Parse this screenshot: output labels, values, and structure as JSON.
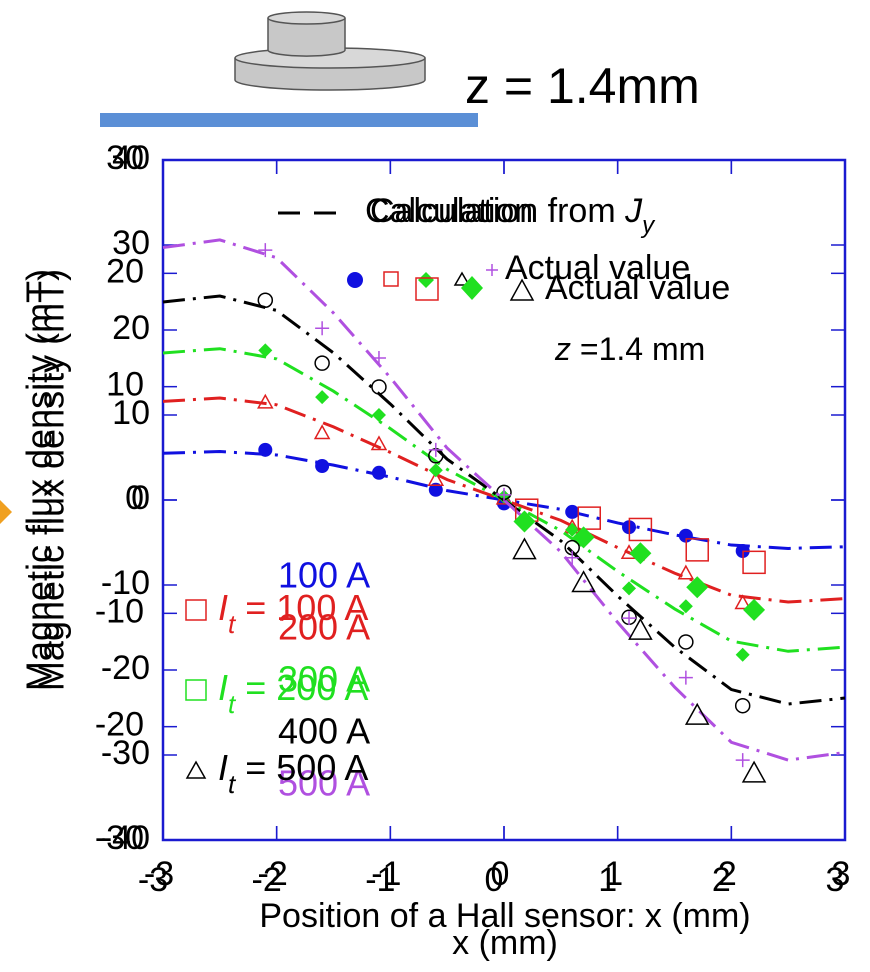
{
  "header": {
    "text": "z = 1.4mm"
  },
  "chart_data": [
    {
      "type": "line",
      "ylabel": "Magnetic flux density (mT)",
      "xlabel": "x (mm)",
      "legend": {
        "line": "Calculation",
        "markers": "Actual value",
        "note": "z =1.4 mm"
      },
      "x": [
        -3,
        -2.5,
        -2,
        -1.5,
        -1,
        -0.5,
        0,
        0.5,
        1,
        1.5,
        2,
        2.5,
        3
      ],
      "xlim": [
        -3,
        3
      ],
      "xticks": [
        -3,
        -2,
        -1,
        0,
        1,
        2,
        3
      ],
      "ylim": [
        -40,
        40
      ],
      "yticks": [
        -40,
        -30,
        -20,
        -10,
        0,
        10,
        20,
        30,
        40
      ],
      "marker_x": [
        -2.1,
        -1.6,
        -1.1,
        -0.6,
        0,
        0.6,
        1.1,
        1.6,
        2.1
      ],
      "series": [
        {
          "name": "100 A",
          "color": "#1010e0",
          "marker": "dot",
          "values": [
            5.5,
            5.7,
            5.3,
            4.1,
            2.7,
            1.1,
            0,
            -1.1,
            -2.7,
            -4.1,
            -5.3,
            -5.7,
            -5.5
          ],
          "marker_values": [
            5.9,
            4,
            3.2,
            1.2,
            -0.4,
            -1.4,
            -3.2,
            -4.2,
            -6
          ]
        },
        {
          "name": "200 A",
          "color": "#e02020",
          "marker": "triangle",
          "values": [
            11.6,
            12,
            11.2,
            8.6,
            5.6,
            2.4,
            0,
            -2.4,
            -5.6,
            -8.6,
            -11.2,
            -12,
            -11.6
          ],
          "marker_values": [
            11.5,
            7.9,
            6.6,
            2.4,
            0.2,
            -3.2,
            -6.2,
            -8.6,
            -12.1
          ]
        },
        {
          "name": "300 A",
          "color": "#20e020",
          "marker": "diamond",
          "values": [
            17.3,
            17.8,
            16.6,
            12.8,
            8.4,
            3.6,
            0,
            -3.6,
            -8.4,
            -12.8,
            -16.6,
            -17.8,
            -17.3
          ],
          "marker_values": [
            17.6,
            12.1,
            10,
            3.5,
            0.4,
            -3.5,
            -10.4,
            -12.5,
            -18.2
          ]
        },
        {
          "name": "400 A",
          "color": "#000000",
          "marker": "circle",
          "values": [
            23.3,
            24,
            22.3,
            17.3,
            11.3,
            4.8,
            0,
            -4.8,
            -11.3,
            -17.3,
            -22.3,
            -24,
            -23.3
          ],
          "marker_values": [
            23.5,
            16.1,
            13.3,
            5.2,
            0.9,
            -5.6,
            -13.8,
            -16.7,
            -24.2
          ]
        },
        {
          "name": "500 A",
          "color": "#b050e0",
          "marker": "plus",
          "values": [
            29.7,
            30.6,
            28.5,
            22,
            14.4,
            6.1,
            0,
            -6.1,
            -14.4,
            -22,
            -28.5,
            -30.6,
            -29.7
          ],
          "marker_values": [
            29.4,
            20.2,
            16.7,
            5.9,
            0.6,
            -6.8,
            -13.9,
            -20.9,
            -30.6
          ]
        }
      ]
    },
    {
      "type": "scatter",
      "ylabel": "Magnetic flux density (mT)",
      "xlabel": "Position of a Hall sensor: x (mm)",
      "legend": {
        "line": "Calculation from Jy",
        "markers": "Actual value"
      },
      "xlim": [
        -3,
        3
      ],
      "xticks": [
        -3,
        -2,
        -1,
        0,
        1,
        2,
        3
      ],
      "ylim": [
        -30,
        30
      ],
      "yticks": [
        -30,
        -20,
        -10,
        0,
        10,
        20,
        30
      ],
      "series": [
        {
          "name": "It = 100 A",
          "color": "#e02020",
          "marker": "square",
          "x": [
            0.2,
            0.75,
            1.2,
            1.7,
            2.2
          ],
          "values": [
            -0.9,
            -1.6,
            -2.6,
            -4.4,
            -5.5
          ]
        },
        {
          "name": "It = 200 A",
          "color": "#20e020",
          "marker": "diamond",
          "x": [
            0.18,
            0.7,
            1.2,
            1.7,
            2.2
          ],
          "values": [
            -1.9,
            -3.3,
            -4.7,
            -7.7,
            -9.7
          ]
        },
        {
          "name": "It = 500 A",
          "color": "#000000",
          "marker": "triangle",
          "x": [
            0.18,
            0.7,
            1.2,
            1.7,
            2.2
          ],
          "values": [
            -4.4,
            -7.3,
            -11.5,
            -19,
            -24.1
          ]
        }
      ]
    }
  ]
}
